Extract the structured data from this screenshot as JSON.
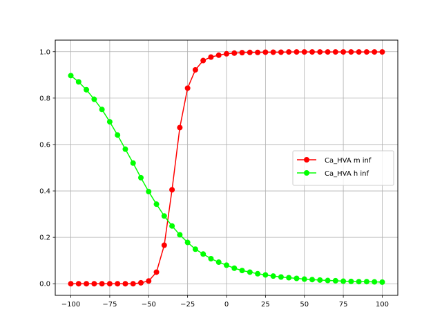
{
  "chart_data": {
    "type": "line",
    "title": "",
    "xlabel": "",
    "ylabel": "",
    "xlim": [
      -110,
      110
    ],
    "ylim": [
      -0.05,
      1.05
    ],
    "xticks": [
      -100,
      -75,
      -50,
      -25,
      0,
      25,
      50,
      75,
      100
    ],
    "xtick_labels": [
      "−100",
      "−75",
      "−50",
      "−25",
      "0",
      "25",
      "50",
      "75",
      "100"
    ],
    "yticks": [
      0.0,
      0.2,
      0.4,
      0.6,
      0.8,
      1.0
    ],
    "ytick_labels": [
      "0.0",
      "0.2",
      "0.4",
      "0.6",
      "0.8",
      "1.0"
    ],
    "grid": true,
    "legend_position": "center-right",
    "x": [
      -100,
      -95,
      -90,
      -85,
      -80,
      -75,
      -70,
      -65,
      -60,
      -55,
      -50,
      -45,
      -40,
      -35,
      -30,
      -25,
      -20,
      -15,
      -10,
      -5,
      0,
      5,
      10,
      15,
      20,
      25,
      30,
      35,
      40,
      45,
      50,
      55,
      60,
      65,
      70,
      75,
      80,
      85,
      90,
      95,
      100
    ],
    "series": [
      {
        "name": "Ca_HVA m inf",
        "color": "#ff0000",
        "marker": "circle",
        "values": [
          0.0,
          0.0,
          0.0,
          0.0,
          0.0,
          0.0,
          0.0,
          0.0,
          0.0,
          0.004,
          0.012,
          0.05,
          0.166,
          0.405,
          0.673,
          0.843,
          0.922,
          0.962,
          0.977,
          0.985,
          0.991,
          0.994,
          0.996,
          0.997,
          0.997,
          0.998,
          0.998,
          0.998,
          0.999,
          0.999,
          0.999,
          0.999,
          0.999,
          0.999,
          0.999,
          0.999,
          0.999,
          0.999,
          0.999,
          0.999,
          0.999
        ]
      },
      {
        "name": "Ca_HVA h inf",
        "color": "#00ff00",
        "marker": "circle",
        "values": [
          0.897,
          0.87,
          0.836,
          0.795,
          0.751,
          0.698,
          0.641,
          0.58,
          0.52,
          0.457,
          0.397,
          0.343,
          0.292,
          0.249,
          0.211,
          0.178,
          0.149,
          0.128,
          0.108,
          0.093,
          0.08,
          0.067,
          0.057,
          0.05,
          0.043,
          0.038,
          0.033,
          0.029,
          0.026,
          0.023,
          0.02,
          0.018,
          0.016,
          0.014,
          0.013,
          0.011,
          0.01,
          0.009,
          0.009,
          0.008,
          0.007
        ]
      }
    ]
  }
}
